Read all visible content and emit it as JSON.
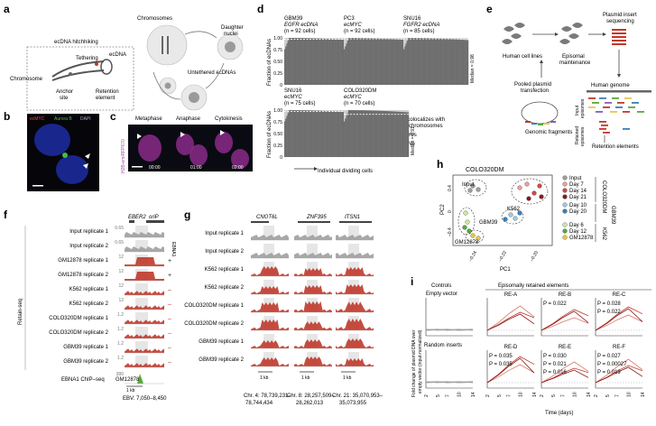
{
  "panels": {
    "a": {
      "letter": "a",
      "hitchhiking": "ecDNA hitchhiking",
      "chromosomes": "Chromosomes",
      "tethering": "Tethering",
      "ecdna": "ecDNA",
      "chromosome": "Chromosome",
      "anchor": [
        "Anchor",
        "site"
      ],
      "retention": [
        "Retention",
        "element"
      ],
      "daughter": [
        "Daughter",
        "nuclei"
      ],
      "untethered": "Untethered ecDNAs"
    },
    "b": {
      "letter": "b",
      "legend": [
        "ecMYC",
        "Aurora B",
        "DAPI"
      ]
    },
    "c": {
      "letter": "c",
      "stages": [
        "Metaphase",
        "Anaphase",
        "Cytokinesis"
      ],
      "times": [
        "00:00",
        "01:00",
        "02:00"
      ],
      "side_label": "H2B-emiRFP670"
    },
    "d": {
      "letter": "d",
      "ylabel": "Fraction of ecDNAs",
      "xlabel": "Individual dividing cells",
      "legend_title": [
        "ecDNA colocalizes with",
        "mitotic chromosomes"
      ],
      "legend_items": [
        "Yes",
        "No"
      ],
      "ticks": [
        "1.00",
        "0.75",
        "0.50",
        "0.25",
        "0"
      ]
    },
    "e": {
      "letter": "e",
      "pooled": [
        "Pooled plasmid",
        "transfection"
      ],
      "human_lines": "Human cell lines",
      "episomal": [
        "Episomal",
        "maintenance"
      ],
      "plasmid_seq": [
        "Plasmid insert",
        "sequencing"
      ],
      "genome": "Human genome",
      "input_ep": [
        "Input",
        "episomes"
      ],
      "retained_ep": [
        "Retained",
        "episomes"
      ],
      "fragments": "Genomic fragments",
      "retention": "Retention elements"
    },
    "f": {
      "letter": "f",
      "genes": [
        "EBER2",
        "oriP"
      ],
      "ebna": "EBNA1",
      "group_label": "Retain-seq",
      "tracks": [
        {
          "label": "Input replicate 1",
          "scale": "0.65",
          "sign": ""
        },
        {
          "label": "Input replicate 2",
          "scale": "0.65",
          "sign": ""
        },
        {
          "label": "GM12878 replicate 1",
          "scale": "12",
          "sign": "+"
        },
        {
          "label": "GM12878 replicate 2",
          "scale": "12",
          "sign": "+"
        },
        {
          "label": "K562 replicate 1",
          "scale": "12",
          "sign": "–"
        },
        {
          "label": "K562 replicate 2",
          "scale": "12",
          "sign": "–"
        },
        {
          "label": "COLO320DM replicate 1",
          "scale": "1.2",
          "sign": "–"
        },
        {
          "label": "COLO320DM replicate 2",
          "scale": "1.2",
          "sign": "–"
        },
        {
          "label": "GBM39 replicate 1",
          "scale": "1.2",
          "sign": "–"
        },
        {
          "label": "GBM39 replicate 2",
          "scale": "1.2",
          "sign": "–"
        }
      ],
      "chip_label": [
        "EBNA1 ChIP–seq",
        "GM12878"
      ],
      "chip_scale": "380",
      "scale_bar": "1 kb",
      "coords": "EBV: 7,050–8,450"
    },
    "g": {
      "letter": "g",
      "genes": [
        "CNOT6L",
        "ZNF395",
        "ITSN1"
      ],
      "tracks": [
        "Input replicate 1",
        "Input replicate 2",
        "K562 replicate 1",
        "K562 replicate 2",
        "COLO320DM replicate 1",
        "COLO320DM replicate 2",
        "GBM39 replicate 1",
        "GBM39 replicate 2"
      ],
      "scale_bar": "1 kb",
      "coords": [
        [
          "Chr. 4: 78,739,231–",
          "78,744,434"
        ],
        [
          "Chr. 8: 28,257,509–",
          "28,262,013"
        ],
        [
          "Chr. 21: 35,070,953–",
          "35,073,955"
        ]
      ]
    },
    "h": {
      "letter": "h",
      "title": "COLO320DM",
      "input_label": "Input",
      "k562": "K562",
      "gbm39": "GBM39",
      "gm12878": "GM12878",
      "xlabel": "PC1",
      "ylabel": "PC2",
      "xticks": [
        "–0.24",
        "–0.22",
        "–0.20"
      ],
      "yticks": [
        "0.4",
        "0",
        "–0.4"
      ],
      "legend": [
        "Input",
        "Day 7",
        "Day 14",
        "Day 21",
        "Day 10",
        "Day 20",
        "Day 6",
        "Day 12",
        "GM12878"
      ],
      "side_labels": [
        "COLO320DM",
        "K562",
        "GBM39"
      ],
      "colors": {
        "input": "#9e9e9e",
        "d7": "#e8a0a0",
        "d14": "#d04848",
        "d21": "#8a1a1a",
        "d10": "#9ecae1",
        "d20": "#3a7fb8",
        "d6": "#c7e9a0",
        "d12": "#5aa83a",
        "gm": "#e6c84a"
      }
    },
    "i": {
      "letter": "i",
      "controls": "Controls",
      "episomal": "Episomally retained elements",
      "empty": "Empty vector",
      "random": "Random inserts",
      "ylabel": [
        "Fold change of plasmid DNA over",
        "empty vector (input-normalized)"
      ],
      "xlabel": "Time (days)",
      "xticks": [
        "2",
        "5",
        "7",
        "10",
        "14"
      ],
      "re": [
        "RE-A",
        "RE-B",
        "RE-C",
        "RE-D",
        "RE-E",
        "RE-F"
      ],
      "pvals": {
        "reb": [
          "P = 0.022"
        ],
        "rec": [
          "P = 0.028",
          "P = 0.022"
        ],
        "red": [
          "P = 0.035",
          "P = 0.035"
        ],
        "ree": [
          "P = 0.030",
          "P = 0.021",
          "P = 0.016"
        ],
        "ref": [
          "P = 0.027",
          "P = 0.00027",
          "P = 0.019"
        ]
      }
    }
  },
  "chart_data": [
    {
      "type": "bar",
      "panel": "d",
      "title": "Fraction of ecDNAs colocalizing with mitotic chromosomes",
      "ylabel": "Fraction of ecDNAs",
      "xlabel": "Individual dividing cells",
      "ylim": [
        0,
        1
      ],
      "series_names": [
        "Yes",
        "No"
      ],
      "subplots": [
        {
          "name": "GBM39",
          "target": "EGFR ecDNA",
          "n": "(n = 92 cells)",
          "median": "Median = 0.97",
          "median_value": 0.97
        },
        {
          "name": "PC3",
          "target": "ecMYC",
          "n": "(n = 92 cells)",
          "median": "Median = 0.98",
          "median_value": 0.98
        },
        {
          "name": "SNU16",
          "target": "FGFR2 ecDNA",
          "n": "(n = 85 cells)",
          "median": "Median = 0.98",
          "median_value": 0.98
        },
        {
          "name": "SNU16",
          "target": "ecMYC",
          "n": "(n = 75 cells)",
          "median": "Median = 0.97",
          "median_value": 0.97
        },
        {
          "name": "COLO320DM",
          "target": "ecMYC",
          "n": "(n = 70 cells)",
          "median": "Median = 0.91",
          "median_value": 0.91
        }
      ]
    },
    {
      "type": "line",
      "panel": "i",
      "xlabel": "Time (days)",
      "x": [
        2,
        5,
        7,
        10,
        14
      ]
    }
  ]
}
